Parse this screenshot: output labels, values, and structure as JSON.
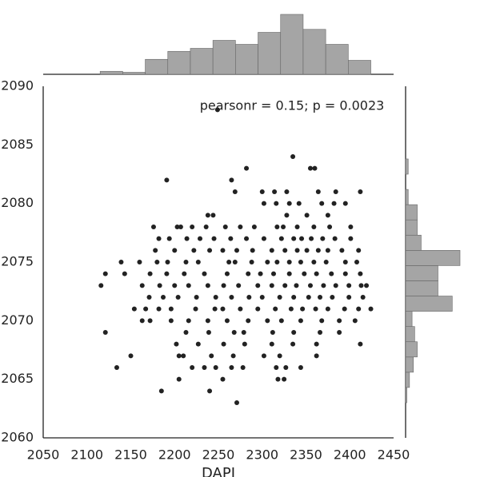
{
  "chart_data": {
    "type": "scatter",
    "annotation": "pearsonr = 0.15; p = 0.0023",
    "xlabel": "DAPI",
    "color": "#222222",
    "xlim": [
      2050,
      2450
    ],
    "ylim": [
      2060,
      2090
    ],
    "xticks": [
      2050,
      2100,
      2150,
      2200,
      2250,
      2300,
      2350,
      2400,
      2450
    ],
    "yticks": [
      2060,
      2065,
      2070,
      2075,
      2080,
      2085,
      2090
    ],
    "x": [
      2249,
      2335,
      2282,
      2355,
      2360,
      2191,
      2265,
      2269,
      2300,
      2314,
      2328,
      2364,
      2384,
      2412,
      2302,
      2316,
      2331,
      2342,
      2368,
      2382,
      2395,
      2238,
      2244,
      2328,
      2351,
      2375,
      2176,
      2203,
      2207,
      2220,
      2236,
      2258,
      2275,
      2291,
      2317,
      2324,
      2340,
      2359,
      2377,
      2401,
      2182,
      2194,
      2214,
      2229,
      2245,
      2264,
      2282,
      2302,
      2322,
      2336,
      2345,
      2356,
      2369,
      2383,
      2401,
      2178,
      2200,
      2222,
      2240,
      2255,
      2271,
      2289,
      2311,
      2326,
      2340,
      2351,
      2364,
      2375,
      2391,
      2410,
      2139,
      2160,
      2180,
      2192,
      2213,
      2227,
      2262,
      2269,
      2288,
      2306,
      2317,
      2331,
      2344,
      2359,
      2373,
      2395,
      2408,
      2121,
      2143,
      2172,
      2191,
      2211,
      2234,
      2260,
      2284,
      2298,
      2313,
      2331,
      2348,
      2362,
      2379,
      2395,
      2412,
      2116,
      2163,
      2183,
      2200,
      2216,
      2238,
      2256,
      2273,
      2295,
      2311,
      2326,
      2339,
      2355,
      2370,
      2384,
      2399,
      2413,
      2419,
      2171,
      2187,
      2204,
      2225,
      2247,
      2265,
      2285,
      2300,
      2320,
      2336,
      2353,
      2366,
      2380,
      2399,
      2415,
      2154,
      2167,
      2182,
      2196,
      2224,
      2246,
      2255,
      2275,
      2295,
      2315,
      2333,
      2346,
      2361,
      2375,
      2394,
      2410,
      2424,
      2163,
      2172,
      2196,
      2216,
      2238,
      2260,
      2284,
      2306,
      2322,
      2344,
      2368,
      2388,
      2406,
      2121,
      2213,
      2239,
      2268,
      2279,
      2312,
      2336,
      2366,
      2388,
      2202,
      2227,
      2256,
      2280,
      2311,
      2335,
      2362,
      2412,
      2150,
      2205,
      2210,
      2242,
      2267,
      2302,
      2320,
      2362,
      2134,
      2220,
      2234,
      2247,
      2265,
      2278,
      2316,
      2327,
      2344,
      2205,
      2255,
      2318,
      2325,
      2185,
      2240,
      2271
    ],
    "y": [
      2088,
      2084,
      2083,
      2083,
      2083,
      2082,
      2082,
      2081,
      2081,
      2081,
      2081,
      2081,
      2081,
      2081,
      2080,
      2080,
      2080,
      2080,
      2080,
      2080,
      2080,
      2079,
      2079,
      2079,
      2079,
      2079,
      2078,
      2078,
      2078,
      2078,
      2078,
      2078,
      2078,
      2078,
      2078,
      2078,
      2078,
      2078,
      2078,
      2078,
      2077,
      2077,
      2077,
      2077,
      2077,
      2077,
      2077,
      2077,
      2077,
      2077,
      2077,
      2077,
      2077,
      2077,
      2077,
      2076,
      2076,
      2076,
      2076,
      2076,
      2076,
      2076,
      2076,
      2076,
      2076,
      2076,
      2076,
      2076,
      2076,
      2076,
      2075,
      2075,
      2075,
      2075,
      2075,
      2075,
      2075,
      2075,
      2075,
      2075,
      2075,
      2075,
      2075,
      2075,
      2075,
      2075,
      2075,
      2074,
      2074,
      2074,
      2074,
      2074,
      2074,
      2074,
      2074,
      2074,
      2074,
      2074,
      2074,
      2074,
      2074,
      2074,
      2074,
      2073,
      2073,
      2073,
      2073,
      2073,
      2073,
      2073,
      2073,
      2073,
      2073,
      2073,
      2073,
      2073,
      2073,
      2073,
      2073,
      2073,
      2073,
      2072,
      2072,
      2072,
      2072,
      2072,
      2072,
      2072,
      2072,
      2072,
      2072,
      2072,
      2072,
      2072,
      2072,
      2072,
      2071,
      2071,
      2071,
      2071,
      2071,
      2071,
      2071,
      2071,
      2071,
      2071,
      2071,
      2071,
      2071,
      2071,
      2071,
      2071,
      2071,
      2070,
      2070,
      2070,
      2070,
      2070,
      2070,
      2070,
      2070,
      2070,
      2070,
      2070,
      2070,
      2070,
      2069,
      2069,
      2069,
      2069,
      2069,
      2069,
      2069,
      2069,
      2069,
      2068,
      2068,
      2068,
      2068,
      2068,
      2068,
      2068,
      2068,
      2067,
      2067,
      2067,
      2067,
      2067,
      2067,
      2067,
      2067,
      2066,
      2066,
      2066,
      2066,
      2066,
      2066,
      2066,
      2066,
      2066,
      2065,
      2065,
      2065,
      2065,
      2064,
      2064,
      2063
    ],
    "marginal_x": {
      "type": "histogram",
      "color": "#a5a5a5",
      "bins": [
        2115,
        2140.75,
        2166.5,
        2192.25,
        2218,
        2243.75,
        2269.5,
        2295.25,
        2321,
        2346.75,
        2372.5,
        2398.25,
        2424
      ],
      "counts": [
        3,
        2,
        15,
        23,
        26,
        34,
        30,
        42,
        60,
        45,
        30,
        14
      ]
    },
    "marginal_y": {
      "type": "histogram",
      "color": "#a5a5a5",
      "bins": [
        2063,
        2064.3,
        2065.6,
        2066.9,
        2068.2,
        2069.5,
        2070.8,
        2072.1,
        2073.4,
        2074.7,
        2076,
        2077.3,
        2078.6,
        2079.9,
        2081.2,
        2082.5,
        2083.8
      ],
      "counts": [
        1,
        3,
        6,
        9,
        7,
        5,
        36,
        25,
        25,
        42,
        12,
        9,
        9,
        2,
        0,
        2
      ]
    }
  }
}
